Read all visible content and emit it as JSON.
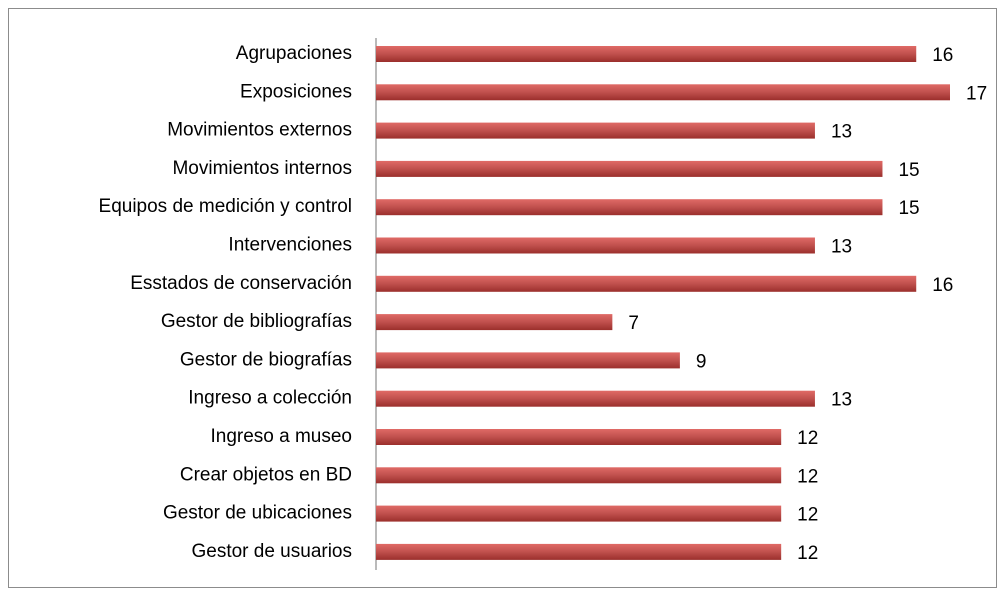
{
  "chart_data": {
    "type": "bar",
    "orientation": "horizontal",
    "categories": [
      "Agrupaciones",
      "Exposiciones",
      "Movimientos externos",
      "Movimientos internos",
      "Equipos de medición y control",
      "Intervenciones",
      "Esstados de conservación",
      "Gestor de bibliografías",
      "Gestor de biografías",
      "Ingreso a colección",
      "Ingreso a museo",
      "Crear objetos en BD",
      "Gestor de ubicaciones",
      "Gestor de usuarios"
    ],
    "values": [
      16,
      17,
      13,
      15,
      15,
      13,
      16,
      7,
      9,
      13,
      12,
      12,
      12,
      12
    ],
    "color": "#c0504d"
  }
}
